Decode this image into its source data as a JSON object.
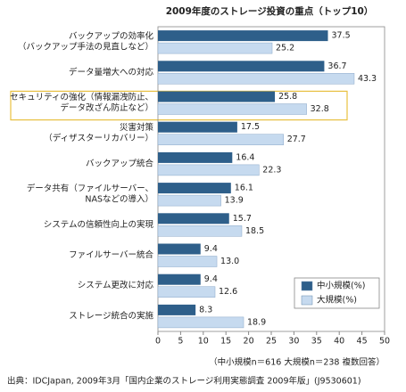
{
  "chart_data": {
    "type": "hbar",
    "title": "2009年度のストレージ投資の重点（トップ10）",
    "categories": [
      [
        "バックアップの効率化",
        "（バックアップ手法の見直しなど）"
      ],
      [
        "データ量増大への対応"
      ],
      [
        "セキュリティの強化（情報漏洩防止、",
        "データ改ざん防止など）"
      ],
      [
        "災害対策",
        "（ディザスターリカバリー）"
      ],
      [
        "バックアップ統合"
      ],
      [
        "データ共有（ファイルサーバー、",
        "NASなどの導入）"
      ],
      [
        "システムの信頼性向上の実現"
      ],
      [
        "ファイルサーバー統合"
      ],
      [
        "システム更改に対応"
      ],
      [
        "ストレージ統合の実施"
      ]
    ],
    "series": [
      {
        "name": "中小規模(%)",
        "color": "#2e5f8a",
        "values": [
          37.5,
          36.7,
          25.8,
          17.5,
          16.4,
          16.1,
          15.7,
          9.4,
          9.4,
          8.3
        ]
      },
      {
        "name": "大規模(%)",
        "color": "#c6daef",
        "values": [
          25.2,
          43.3,
          32.8,
          27.7,
          22.3,
          13.9,
          18.5,
          13.0,
          12.6,
          18.9
        ],
        "value_labels": [
          "25.2",
          "43.3",
          "32.8",
          "27.7",
          "22.3",
          "13.9",
          "18.5",
          "13.0",
          "12.6",
          "18.9"
        ]
      }
    ],
    "xlim": [
      0,
      50
    ],
    "xticks": [
      0,
      5,
      10,
      15,
      20,
      25,
      30,
      35,
      40,
      45,
      50
    ],
    "highlight": 2,
    "legend": "lower right",
    "note": "（中小規模n＝616 大規模n＝238 複数回答）",
    "source": "出典：IDCJapan, 2009年3月「国内企業のストレージ利用実態調査 2009年版」(J9530601)"
  }
}
